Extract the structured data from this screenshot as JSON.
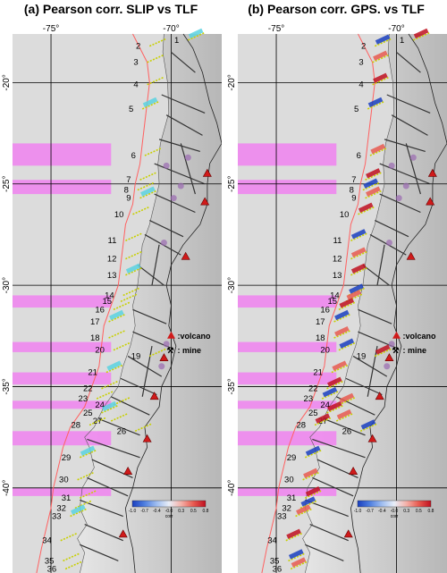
{
  "panels": [
    {
      "id": "a",
      "title": "(a) Pearson corr. SLIP vs TLF",
      "kind": "slip"
    },
    {
      "id": "b",
      "title": "(b) Pearson corr. GPS. vs TLF",
      "kind": "gps"
    }
  ],
  "axes": {
    "lon_ticks": [
      {
        "value": -75,
        "label": "-75°"
      },
      {
        "value": -70,
        "label": "-70°"
      }
    ],
    "lat_ticks": [
      {
        "value": -20,
        "label": "-20°"
      },
      {
        "value": -25,
        "label": "-25°"
      },
      {
        "value": -30,
        "label": "-30°"
      },
      {
        "value": -35,
        "label": "-35°"
      },
      {
        "value": -40,
        "label": "-40°"
      }
    ],
    "lon_range": [
      -76.6,
      -67.9
    ],
    "lat_range": [
      -17.6,
      -44.2
    ]
  },
  "segments": [
    {
      "label": "1",
      "lat": -17.9,
      "lon": -69.3
    },
    {
      "label": "2",
      "lat": -18.2,
      "lon": -70.9
    },
    {
      "label": "3",
      "lat": -19.0,
      "lon": -71.0
    },
    {
      "label": "4",
      "lat": -20.1,
      "lon": -71.0
    },
    {
      "label": "5",
      "lat": -21.3,
      "lon": -71.2
    },
    {
      "label": "6",
      "lat": -23.6,
      "lon": -71.1
    },
    {
      "label": "7",
      "lat": -24.8,
      "lon": -71.3
    },
    {
      "label": "8",
      "lat": -25.3,
      "lon": -71.4
    },
    {
      "label": "9",
      "lat": -25.7,
      "lon": -71.3
    },
    {
      "label": "10",
      "lat": -26.5,
      "lon": -71.6
    },
    {
      "label": "11",
      "lat": -27.8,
      "lon": -71.9
    },
    {
      "label": "12",
      "lat": -28.7,
      "lon": -71.9
    },
    {
      "label": "13",
      "lat": -29.5,
      "lon": -71.9
    },
    {
      "label": "14",
      "lat": -30.5,
      "lon": -72.0
    },
    {
      "label": "15",
      "lat": -30.8,
      "lon": -72.1
    },
    {
      "label": "16",
      "lat": -31.2,
      "lon": -72.4
    },
    {
      "label": "17",
      "lat": -31.8,
      "lon": -72.6
    },
    {
      "label": "18",
      "lat": -32.6,
      "lon": -72.6
    },
    {
      "label": "19",
      "lat": -33.5,
      "lon": -70.9
    },
    {
      "label": "20",
      "lat": -33.2,
      "lon": -72.4
    },
    {
      "label": "21",
      "lat": -34.3,
      "lon": -72.7
    },
    {
      "label": "22",
      "lat": -35.1,
      "lon": -72.9
    },
    {
      "label": "23",
      "lat": -35.6,
      "lon": -73.1
    },
    {
      "label": "24",
      "lat": -35.9,
      "lon": -72.4
    },
    {
      "label": "25",
      "lat": -36.3,
      "lon": -72.9
    },
    {
      "label": "26",
      "lat": -37.2,
      "lon": -71.5
    },
    {
      "label": "27",
      "lat": -36.7,
      "lon": -72.5
    },
    {
      "label": "28",
      "lat": -36.9,
      "lon": -73.4
    },
    {
      "label": "29",
      "lat": -38.5,
      "lon": -73.8
    },
    {
      "label": "30",
      "lat": -39.6,
      "lon": -73.9
    },
    {
      "label": "31",
      "lat": -40.5,
      "lon": -73.8
    },
    {
      "label": "32",
      "lat": -41.0,
      "lon": -74.0
    },
    {
      "label": "33",
      "lat": -41.4,
      "lon": -74.2
    },
    {
      "label": "34",
      "lat": -42.6,
      "lon": -74.6
    },
    {
      "label": "35",
      "lat": -43.6,
      "lon": -74.5
    },
    {
      "label": "36",
      "lat": -44.0,
      "lon": -74.4
    }
  ],
  "legend": {
    "volcano_label": ":volcano",
    "mine_label": ": mine"
  },
  "colorbar": {
    "ticks": [
      "-1.0",
      "-0.7",
      "-0.4",
      "-0.0",
      "0.3",
      "0.5",
      "0.8"
    ],
    "label": "corr",
    "colors": [
      "#1a3fbf",
      "#4f7fe0",
      "#9fbdf0",
      "#e8eef8",
      "#f4b0a8",
      "#e85a50",
      "#c01020"
    ]
  },
  "colors": {
    "highlight_band": "#f082f0",
    "trench": "#ff6060",
    "grid": "#000000",
    "faults": "#333333",
    "segments": "#c8d000",
    "slip_patch": "#5ad2e0",
    "volcano": "#d01a1a",
    "mine_cluster": "#9a6ab0"
  },
  "highlight_bands": [
    {
      "lat_start": -23.0,
      "lat_end": -24.1
    },
    {
      "lat_start": -24.8,
      "lat_end": -25.5
    },
    {
      "lat_start": -30.5,
      "lat_end": -31.1
    },
    {
      "lat_start": -32.8,
      "lat_end": -33.3
    },
    {
      "lat_start": -34.3,
      "lat_end": -34.9
    },
    {
      "lat_start": -35.7,
      "lat_end": -36.1
    },
    {
      "lat_start": -37.2,
      "lat_end": -37.9
    },
    {
      "lat_start": -40.0,
      "lat_end": -40.4
    }
  ]
}
